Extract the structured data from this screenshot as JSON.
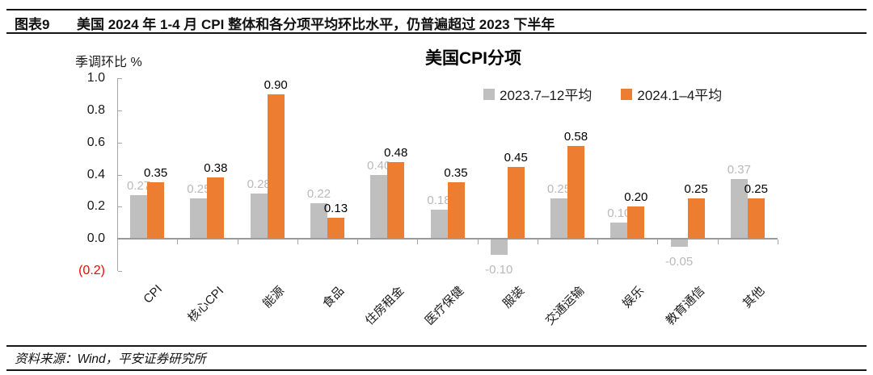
{
  "figure": {
    "label": "图表9",
    "title": "美国 2024 年 1-4 月 CPI 整体和各分项平均环比水平，仍普遍超过 2023 下半年",
    "source": "资料来源：Wind，平安证券研究所"
  },
  "chart_data": {
    "type": "bar",
    "title": "美国CPI分项",
    "unit_label": "季调环比 %",
    "categories": [
      "CPI",
      "核心CPI",
      "能源",
      "食品",
      "住房租金",
      "医疗保健",
      "服装",
      "交通运输",
      "娱乐",
      "教育通信",
      "其他"
    ],
    "series": [
      {
        "name": "2023.7–12平均",
        "color": "#BFBFBF",
        "label_color": "#B9B9B9",
        "values": [
          0.27,
          0.25,
          0.28,
          0.22,
          0.4,
          0.18,
          -0.1,
          0.25,
          0.1,
          -0.05,
          0.37
        ]
      },
      {
        "name": "2024.1–4平均",
        "color": "#ED7D31",
        "label_color": "#000000",
        "values": [
          0.35,
          0.38,
          0.9,
          0.13,
          0.48,
          0.35,
          0.45,
          0.58,
          0.2,
          0.25,
          0.25
        ]
      }
    ],
    "ylim": [
      -0.2,
      1.0
    ],
    "yticks": [
      1.0,
      0.8,
      0.6,
      0.4,
      0.2,
      0.0,
      -0.2
    ],
    "ytick_labels": [
      "1.0",
      "0.8",
      "0.6",
      "0.4",
      "0.2",
      "0.0",
      "(0.2)"
    ],
    "ytick_negative_color": "#FF0000",
    "grid": false,
    "legend_position": "top-right",
    "data_labels": true
  }
}
